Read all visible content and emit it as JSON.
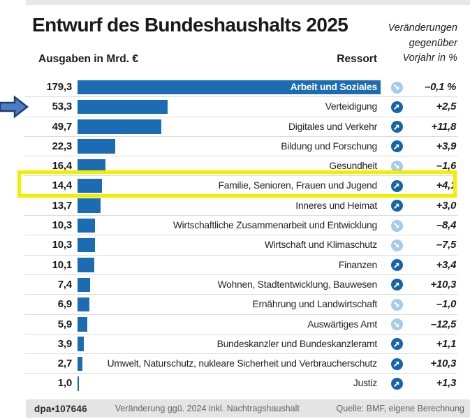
{
  "title": "Entwurf des Bundeshaushalts 2025",
  "note": {
    "lines": [
      "Veränderungen",
      "gegenüber",
      "Vorjahr in %"
    ]
  },
  "columns": {
    "left": "Ausgaben in Mrd. €",
    "right": "Ressort"
  },
  "chart_data": {
    "type": "bar",
    "orientation": "horizontal",
    "title": "Entwurf des Bundeshaushalts 2025",
    "value_axis_label": "Ausgaben in Mrd. €",
    "category_axis_label": "Ressort",
    "change_column_label": "Veränderungen gegenüber Vorjahr in %",
    "xlim": [
      0,
      179.3
    ],
    "grid": false,
    "rows": [
      {
        "ressort": "Arbeit und Soziales",
        "value": 179.3,
        "value_text": "179,3",
        "change_text": "–0,1 %",
        "direction": "down",
        "label_inside": true
      },
      {
        "ressort": "Verteidigung",
        "value": 53.3,
        "value_text": "53,3",
        "change_text": "+2,5",
        "direction": "up"
      },
      {
        "ressort": "Digitales und Verkehr",
        "value": 49.7,
        "value_text": "49,7",
        "change_text": "+11,8",
        "direction": "up"
      },
      {
        "ressort": "Bildung und Forschung",
        "value": 22.3,
        "value_text": "22,3",
        "change_text": "+3,9",
        "direction": "up"
      },
      {
        "ressort": "Gesundheit",
        "value": 16.4,
        "value_text": "16,4",
        "change_text": "–1,6",
        "direction": "down"
      },
      {
        "ressort": "Familie, Senioren, Frauen und Jugend",
        "value": 14.4,
        "value_text": "14,4",
        "change_text": "+4,1",
        "direction": "up",
        "highlighted": true
      },
      {
        "ressort": "Inneres und Heimat",
        "value": 13.7,
        "value_text": "13,7",
        "change_text": "+3,0",
        "direction": "up"
      },
      {
        "ressort": "Wirtschaftliche Zusammenarbeit und Entwicklung",
        "value": 10.3,
        "value_text": "10,3",
        "change_text": "–8,4",
        "direction": "down"
      },
      {
        "ressort": "Wirtschaft und Klimaschutz",
        "value": 10.3,
        "value_text": "10,3",
        "change_text": "–7,5",
        "direction": "down"
      },
      {
        "ressort": "Finanzen",
        "value": 10.1,
        "value_text": "10,1",
        "change_text": "+3,4",
        "direction": "up"
      },
      {
        "ressort": "Wohnen, Stadtentwicklung, Bauwesen",
        "value": 7.4,
        "value_text": "7,4",
        "change_text": "+10,3",
        "direction": "up"
      },
      {
        "ressort": "Ernährung und Landwirtschaft",
        "value": 6.9,
        "value_text": "6,9",
        "change_text": "–1,0",
        "direction": "down"
      },
      {
        "ressort": "Auswärtiges Amt",
        "value": 5.9,
        "value_text": "5,9",
        "change_text": "–12,5",
        "direction": "down"
      },
      {
        "ressort": "Bundeskanzler und Bundeskanzleramt",
        "value": 3.9,
        "value_text": "3,9",
        "change_text": "+1,1",
        "direction": "up"
      },
      {
        "ressort": "Umwelt, Naturschutz, nukleare Sicherheit und Verbraucherschutz",
        "value": 2.7,
        "value_text": "2,7",
        "change_text": "+10,3",
        "direction": "up"
      },
      {
        "ressort": "Justiz",
        "value": 1.0,
        "value_text": "1,0",
        "change_text": "+1,3",
        "direction": "up"
      }
    ]
  },
  "annotations": {
    "highlight_row": "Familie, Senioren, Frauen und Jugend",
    "pointer_arrow_row": "Verteidigung"
  },
  "footer": {
    "brand": "dpa•107646",
    "note": "Veränderung ggü. 2024 inkl. Nachtragshaushalt",
    "source": "Quelle: BMF, eigene Berechnung"
  },
  "colors": {
    "bar_blue": "#1c6cb4",
    "icon_up_bg": "#1464ac",
    "icon_down_bg": "#a4cbe9",
    "highlight_yellow": "#f2ee00",
    "pointer_fill": "#4d7cc2",
    "pointer_stroke": "#1e3c74",
    "separator": "#dcdcdc",
    "footer_bg": "#e4e4e4",
    "footer_text": "#636363",
    "text_dark": "#1a1a1a",
    "top_strip": "#e8e8e8"
  }
}
